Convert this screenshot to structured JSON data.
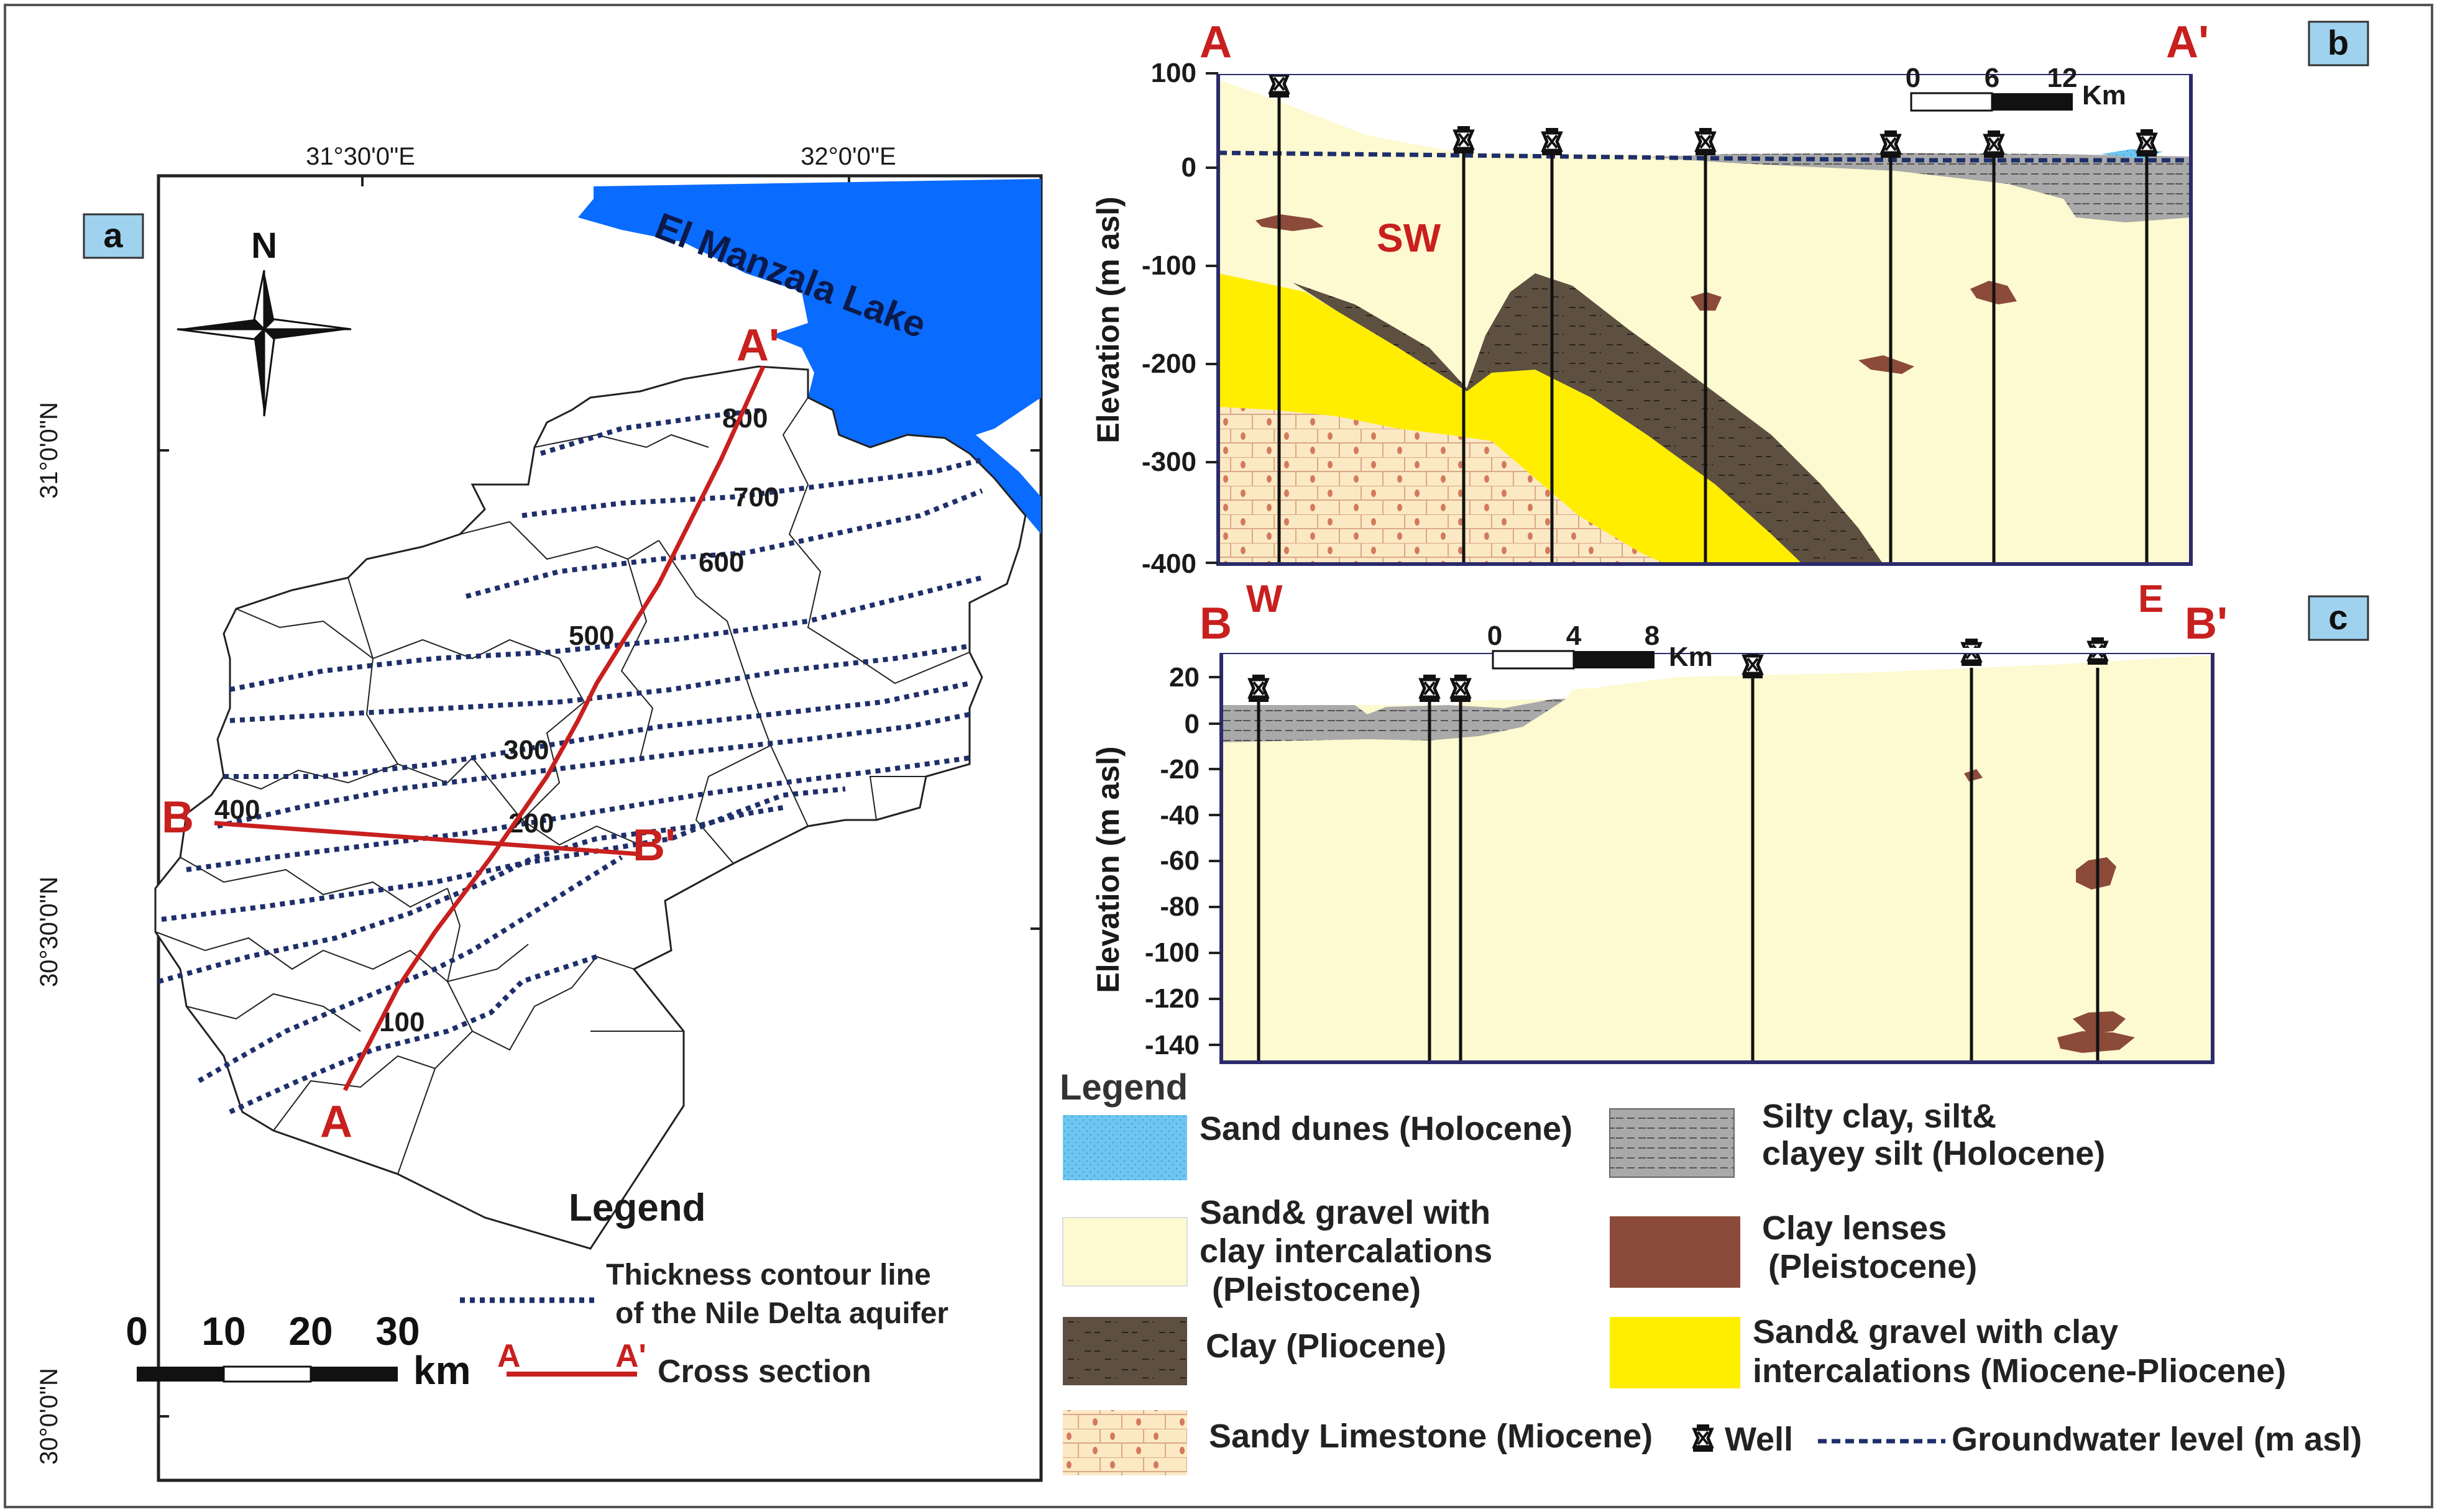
{
  "panels": {
    "a": "a",
    "b": "b",
    "c": "c"
  },
  "map": {
    "lake_name": "El Manzala Lake",
    "north_label": "N",
    "lon_labels": [
      "31°30'0\"E",
      "32°0'0\"E"
    ],
    "lat_labels": [
      "31°0'0\"N",
      "30°30'0\"N",
      "30°0'0\"N"
    ],
    "contour_labels": [
      "800",
      "700",
      "600",
      "500",
      "400",
      "300",
      "200",
      "100"
    ],
    "section_points": {
      "A": "A",
      "A_prime": "A'",
      "B": "B",
      "B_prime": "B'"
    },
    "legend_title": "Legend",
    "legend_contour_line1": "Thickness contour line",
    "legend_contour_line2": "of the Nile Delta aquifer",
    "legend_section_from": "A",
    "legend_section_to": "A'",
    "legend_section_label": "Cross section",
    "scale_ticks": [
      "0",
      "10",
      "20",
      "30"
    ],
    "scale_unit": "km",
    "colors": {
      "lake": "#0a6bff",
      "contour": "#1e2f6b",
      "section": "#c8201e"
    }
  },
  "section_ab": {
    "start": "A",
    "end": "A'",
    "sw": "SW",
    "w": "W",
    "e": "E",
    "y_label": "Elevation (m asl)",
    "y_ticks": [
      "100",
      "0",
      "-100",
      "-200",
      "-300",
      "-400"
    ],
    "scale_ticks": [
      "0",
      "6",
      "12"
    ],
    "scale_unit": "Km"
  },
  "section_bb": {
    "start": "B",
    "end": "B'",
    "y_label": "Elevation (m asl)",
    "y_ticks": [
      "20",
      "0",
      "-20",
      "-40",
      "-60",
      "-80",
      "-100",
      "-120",
      "-140"
    ],
    "scale_ticks": [
      "0",
      "4",
      "8"
    ],
    "scale_unit": "Km"
  },
  "legend": {
    "title": "Legend",
    "sand_dunes": "Sand dunes (Holocene)",
    "silty_clay_1": "Silty clay, silt&",
    "silty_clay_2": "clayey silt (Holocene)",
    "sand_gravel_pleist_1": "Sand& gravel with",
    "sand_gravel_pleist_2": "clay intercalations",
    "sand_gravel_pleist_3": "(Pleistocene)",
    "clay_lenses_1": "Clay lenses",
    "clay_lenses_2": "(Pleistocene)",
    "clay_pliocene": "Clay (Pliocene)",
    "sand_gravel_mio_1": "Sand& gravel with clay",
    "sand_gravel_mio_2": "intercalations (Miocene-Pliocene)",
    "sandy_limestone": "Sandy Limestone (Miocene)",
    "well": "Well",
    "groundwater": "Groundwater level (m asl)",
    "colors": {
      "sand_dunes": "#6ec6f0",
      "silty_clay": "#a9a9a9",
      "sand_gravel": "#fdf9d0",
      "clay_lenses": "#8b4a3a",
      "clay_pliocene": "#5e5040",
      "sand_gravel_mio": "#ffee00",
      "sandy_limestone": "#fbe9c4"
    }
  }
}
